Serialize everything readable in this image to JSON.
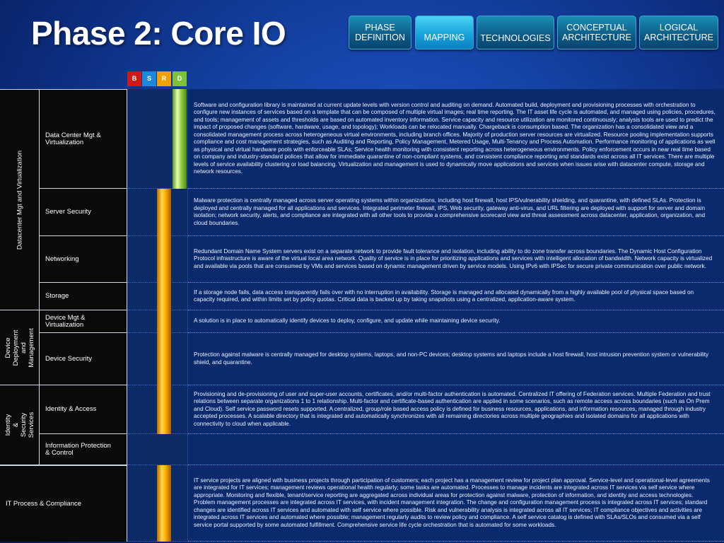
{
  "page_title": "Phase 2: Core IO",
  "tabs": [
    {
      "label": "PHASE\nDEFINITION"
    },
    {
      "label": "MAPPING"
    },
    {
      "label": "TECHNOLOGIES"
    },
    {
      "label": "CONCEPTUAL\nARCHITECTURE"
    },
    {
      "label": "LOGICAL\nARCHITECTURE"
    }
  ],
  "active_tab": "MAPPING",
  "levels": [
    {
      "letter": "B",
      "color": "#d01818"
    },
    {
      "letter": "S",
      "color": "#1e88d8"
    },
    {
      "letter": "R",
      "color": "#f0a000"
    },
    {
      "letter": "D",
      "color": "#7ec23a"
    }
  ],
  "groups": [
    {
      "label": "Datacenter Mgt and Virtualization"
    },
    {
      "label": "Device Deployment\nand Management"
    },
    {
      "label": "Identity & Security\nServices"
    },
    {
      "label": "IT Process & Compliance"
    }
  ],
  "rows": [
    {
      "name": "Data Center Mgt &\nVirtualization",
      "level": "D",
      "description": "Software and configuration library is maintained at current update levels with version control and auditing on demand. Automated build, deployment and provisioning processes with orchestration to configure new instances of services based on a template that can be composed of multiple virtual images; real time reporting.  The IT asset life cycle is automated, and managed using policies, procedures, and tools; management of assets and thresholds are based on automated inventory information. Service capacity and resource utilization are monitored continuously; analysis tools are used to predict the impact of proposed changes (software, hardware, usage, and topology); Workloads can be relocated manually. Chargeback is consumption based. The organization has a consolidated view and a consolidated management process across heterogeneous virtual environments, including branch offices. Majority of production server resources are virtualized. Resource pooling implementation supports compliance and cost management strategies, such as Auditing and Reporting, Policy Management, Metered Usage, Multi-Tenancy and Process Automation. Performance monitoring of applications as well as physical and virtual hardware pools with enforceable SLAs; Service health monitoring with consistent reporting across heterogeneous environments. Policy enforcement occurs in near real time based on company and industry-standard polices that allow for immediate quarantine of non-compliant systems, and consistent compliance reporting and standards exist across all IT services. There are multiple levels of service availability clustering or load balancing. Virtualization and management is used to dynamically move applications and services when issues arise with datacenter compute, storage and network resources."
    },
    {
      "name": "Server Security",
      "level": "R",
      "description": "Malware protection is centrally managed across server operating systems within organizations, including host firewall, host IPS/vulnerability shielding, and quarantine, with defined SLAs. Protection is deployed and centrally managed for all applications and services. Integrated perimeter firewall, IPS, Web security, gateway anti-virus, and URL filtering are deployed with support for server and domain isolation; network security, alerts, and compliance are integrated with all other tools to provide a comprehensive scorecard view and threat assessment across datacenter, application, organization, and cloud boundaries."
    },
    {
      "name": "Networking",
      "level": "R",
      "description": "Redundant Domain Name System servers exist on a separate network to provide fault tolerance and isolation, including ability to do zone transfer across boundaries. The Dynamic Host Configuration Protocol infrastructure is aware of the virtual local area network. Quality of service is in place for prioritizing applications and services with intelligent allocation of bandwidth. Network capacity is virtualized and available via pools that are consumed by VMs and services based on dynamic management driven by service models.   Using IPv6 with IPSec for secure private communication over public network."
    },
    {
      "name": "Storage",
      "level": "R",
      "description": "If a storage node fails, data access transparently fails over with no interruption in availability. Storage is managed and allocated dynamically from a highly available pool of physical space based on capacity required, and within limits set by policy quotas. Critical data is backed up by taking snapshots using a centralized, application-aware system."
    },
    {
      "name": "Device Mgt &\nVirtualization",
      "level": "R",
      "description": "A solution is in place to automatically identify devices to deploy, configure, and update while maintaining device security."
    },
    {
      "name": "Device Security",
      "level": "R",
      "description": "Protection against malware is centrally managed for desktop systems, laptops, and non-PC devices; desktop systems and laptops include a host firewall, host intrusion prevention system or vulnerability shield, and quarantine."
    },
    {
      "name": "Identity & Access",
      "level": "R",
      "description": "Provisioning and de-provisioning of user and super-user accounts, certificates, and/or multi-factor authentication is automated. Centralized IT offering of Federation services. Multiple Federation and trust relations between separate organizations 1 to 1 relationship. Multi-factor and certificate-based authentication are applied in some scenarios, such as remote access across boundaries (such as On Prem and Cloud). Self service password resets supported. A centralized, group/role based access policy is defined for business resources, applications, and information resources, managed through industry accepted processes. A scalable directory that is integrated and automatically synchronizes with all remaining directories across multiple geographies and isolated domains for all applications with connectivity to cloud when applicable."
    },
    {
      "name": "Information Protection\n& Control",
      "level": "",
      "description": ""
    },
    {
      "name": "IT Process & Compliance",
      "level": "R",
      "description": "IT service projects are aligned with business projects through participation of customers; each project has a management review for project plan approval.   Service-level and operational-level agreements are integrated for IT services; management reviews operational health regularly; some tasks are automated. Processes to manage incidents are integrated across IT services via self service where appropriate. Monitoring and flexible, tenant/service reporting are aggregated across individual areas for protection against malware, protection of information, and identity and access technologies. Problem management processes are integrated across IT services, with incident management integration. The change and configuration management process is integrated across IT services; standard changes are identified across IT services and automated with self service where possible.  Risk and vulnerability analysis is integrated across all IT services; IT compliance objectives and activities are integrated across IT services and automated where possible; management regularly audits to review policy and compliance. A self service catalog is defined with SLAs/SLOs and consumed via a self service portal supported by some automated fulfillment. Comprehensive service life cycle orchestration that is automated for some workloads."
    }
  ]
}
